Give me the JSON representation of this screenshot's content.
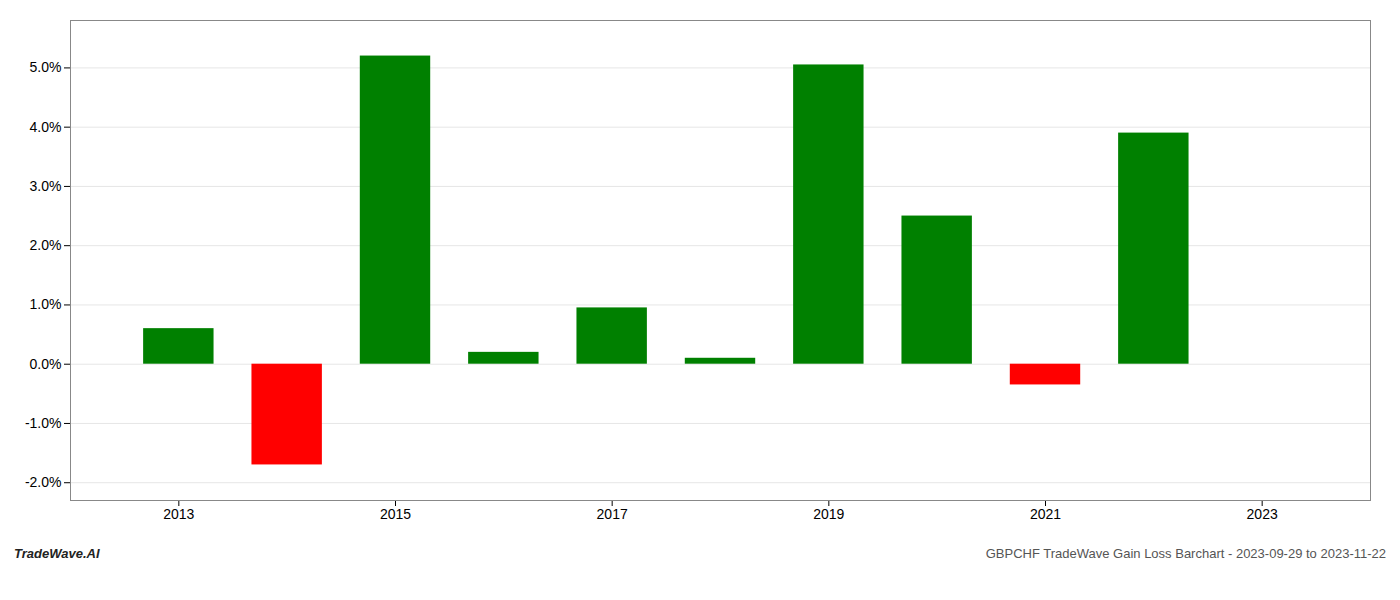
{
  "chart_data": {
    "type": "bar",
    "x": [
      2013,
      2014,
      2015,
      2016,
      2017,
      2018,
      2019,
      2020,
      2021,
      2022
    ],
    "values": [
      0.006,
      -0.017,
      0.052,
      0.002,
      0.0095,
      0.001,
      0.0505,
      0.025,
      -0.0035,
      0.039
    ],
    "colors": [
      "#008000",
      "#ff0000",
      "#008000",
      "#008000",
      "#008000",
      "#008000",
      "#008000",
      "#008000",
      "#ff0000",
      "#008000"
    ],
    "xlim": [
      2012.0,
      2024.0
    ],
    "xticks": [
      2013,
      2015,
      2017,
      2019,
      2021,
      2023
    ],
    "ylim": [
      -0.023,
      0.058
    ],
    "yticks": [
      {
        "value": -0.02,
        "label": "-2.0%"
      },
      {
        "value": -0.01,
        "label": "-1.0%"
      },
      {
        "value": 0.0,
        "label": "0.0%"
      },
      {
        "value": 0.01,
        "label": "1.0%"
      },
      {
        "value": 0.02,
        "label": "2.0%"
      },
      {
        "value": 0.03,
        "label": "3.0%"
      },
      {
        "value": 0.04,
        "label": "4.0%"
      },
      {
        "value": 0.05,
        "label": "5.0%"
      }
    ],
    "grid": true,
    "annotations": [
      "TradeWave.AI",
      "GBPCHF TradeWave Gain Loss Barchart - 2023-09-29 to 2023-11-22"
    ]
  }
}
